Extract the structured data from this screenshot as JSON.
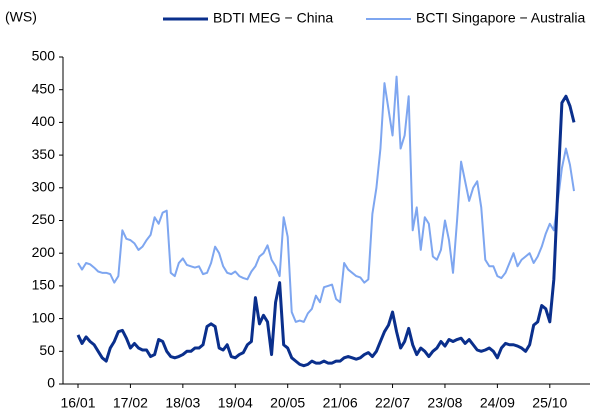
{
  "chart_data": {
    "type": "line",
    "y_label": "(WS)",
    "categories": [
      "16/01",
      null,
      null,
      null,
      null,
      null,
      null,
      null,
      null,
      null,
      null,
      null,
      null,
      "17/02",
      null,
      null,
      null,
      null,
      null,
      null,
      null,
      null,
      null,
      null,
      null,
      null,
      "18/03",
      null,
      null,
      null,
      null,
      null,
      null,
      null,
      null,
      null,
      null,
      null,
      null,
      "19/04",
      null,
      null,
      null,
      null,
      null,
      null,
      null,
      null,
      null,
      null,
      null,
      null,
      "20/05",
      null,
      null,
      null,
      null,
      null,
      null,
      null,
      null,
      null,
      null,
      null,
      null,
      "21/06",
      null,
      null,
      null,
      null,
      null,
      null,
      null,
      null,
      null,
      null,
      null,
      null,
      "22/07",
      null,
      null,
      null,
      null,
      null,
      null,
      null,
      null,
      null,
      null,
      null,
      null,
      "23/08",
      null,
      null,
      null,
      null,
      null,
      null,
      null,
      null,
      null,
      null,
      null,
      null,
      "24/09",
      null,
      null,
      null,
      null,
      null,
      null,
      null,
      null,
      null,
      null,
      null,
      null,
      "25/10",
      null,
      null,
      null,
      null,
      null,
      null
    ],
    "series": [
      {
        "name": "BDTI MEG − China",
        "color": "#0a2f8c",
        "values": [
          75,
          62,
          72,
          65,
          60,
          50,
          40,
          35,
          55,
          65,
          80,
          82,
          70,
          55,
          62,
          55,
          52,
          52,
          42,
          45,
          68,
          65,
          50,
          42,
          40,
          42,
          45,
          50,
          50,
          55,
          55,
          60,
          88,
          92,
          88,
          55,
          52,
          60,
          42,
          40,
          45,
          48,
          60,
          65,
          132,
          92,
          105,
          95,
          45,
          125,
          155,
          60,
          55,
          40,
          35,
          30,
          28,
          30,
          35,
          32,
          32,
          35,
          32,
          32,
          35,
          35,
          40,
          42,
          40,
          38,
          40,
          45,
          48,
          42,
          50,
          65,
          80,
          90,
          110,
          80,
          55,
          65,
          85,
          60,
          45,
          55,
          50,
          42,
          50,
          55,
          65,
          58,
          68,
          65,
          68,
          70,
          62,
          68,
          60,
          52,
          50,
          52,
          55,
          50,
          40,
          55,
          62,
          60,
          60,
          58,
          55,
          50,
          60,
          90,
          95,
          120,
          115,
          95,
          160,
          300,
          430,
          440,
          425,
          400
        ]
      },
      {
        "name": "BCTI Singapore − Australia",
        "color": "#7ea6f0",
        "values": [
          185,
          175,
          185,
          183,
          178,
          172,
          170,
          170,
          168,
          155,
          165,
          235,
          222,
          220,
          215,
          205,
          210,
          220,
          228,
          255,
          245,
          262,
          265,
          170,
          165,
          185,
          192,
          182,
          180,
          178,
          180,
          168,
          170,
          185,
          210,
          200,
          180,
          170,
          168,
          172,
          165,
          162,
          160,
          172,
          180,
          195,
          200,
          212,
          190,
          180,
          165,
          255,
          225,
          110,
          95,
          97,
          95,
          108,
          115,
          135,
          125,
          148,
          150,
          152,
          130,
          125,
          185,
          175,
          170,
          165,
          163,
          155,
          160,
          260,
          300,
          360,
          460,
          420,
          380,
          470,
          360,
          380,
          440,
          235,
          270,
          205,
          255,
          245,
          195,
          190,
          205,
          250,
          220,
          170,
          250,
          340,
          310,
          280,
          300,
          310,
          270,
          190,
          180,
          180,
          165,
          162,
          170,
          185,
          200,
          180,
          190,
          195,
          200,
          185,
          195,
          210,
          230,
          245,
          235,
          280,
          330,
          360,
          335,
          295
        ]
      }
    ],
    "ylim": [
      0,
      500
    ],
    "yticks": [
      0,
      50,
      100,
      150,
      200,
      250,
      300,
      350,
      400,
      450,
      500
    ],
    "legend": "top"
  }
}
